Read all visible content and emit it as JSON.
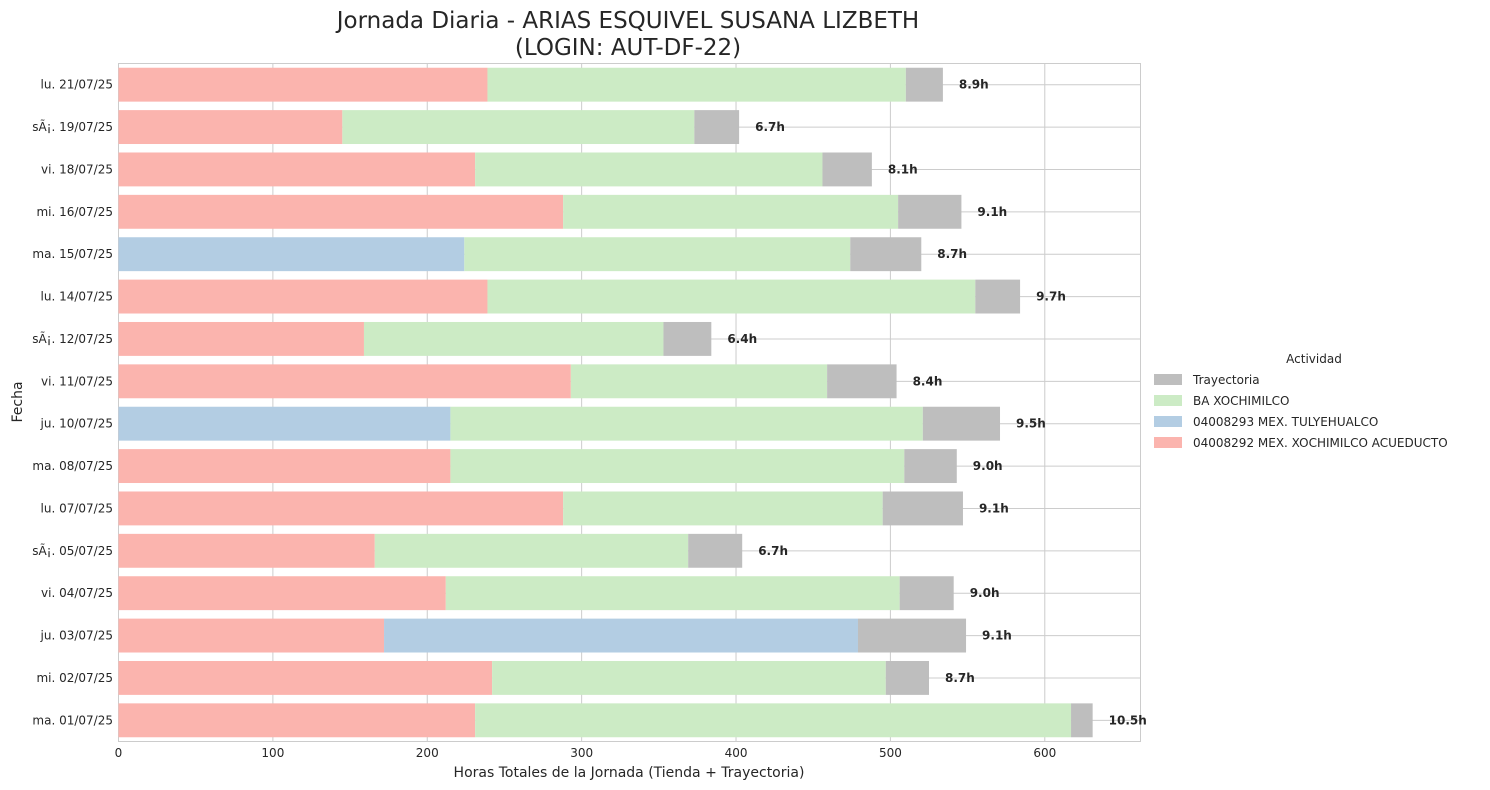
{
  "chart_data": {
    "type": "bar",
    "orientation": "horizontal",
    "stacked": true,
    "title_line1": "Jornada Diaria - ARIAS ESQUIVEL SUSANA LIZBETH",
    "title_line2": "(LOGIN: AUT-DF-22)",
    "xlabel": "Horas Totales de la Jornada (Tienda + Trayectoria)",
    "ylabel": "Fecha",
    "xlim": [
      0,
      662
    ],
    "xticks": [
      0,
      100,
      200,
      300,
      400,
      500,
      600
    ],
    "grid": true,
    "legend": {
      "title": "Actividad",
      "placement": "center-right",
      "entries": [
        "Trayectoria",
        "BA XOCHIMILCO",
        "04008293 MEX. TULYEHUALCO",
        "04008292 MEX. XOCHIMILCO ACUEDUCTO"
      ]
    },
    "series": [
      {
        "name": "04008292 MEX. XOCHIMILCO ACUEDUCTO",
        "color": "#fbb4ae",
        "values": [
          239,
          145,
          231,
          288,
          0,
          239,
          159,
          293,
          0,
          215,
          288,
          166,
          212,
          172,
          242,
          231
        ]
      },
      {
        "name": "04008293 MEX. TULYEHUALCO",
        "color": "#b3cde3",
        "values": [
          0,
          0,
          0,
          0,
          224,
          0,
          0,
          0,
          215,
          0,
          0,
          0,
          0,
          307,
          0,
          0
        ]
      },
      {
        "name": "BA XOCHIMILCO",
        "color": "#ccebc5",
        "values": [
          271,
          228,
          225,
          217,
          250,
          316,
          194,
          166,
          306,
          294,
          207,
          203,
          294,
          0,
          255,
          386
        ]
      },
      {
        "name": "Trayectoria",
        "color": "#bebebe",
        "values": [
          24,
          29,
          32,
          41,
          46,
          29,
          31,
          45,
          50,
          34,
          52,
          35,
          35,
          70,
          28,
          14
        ]
      }
    ],
    "categories": [
      "lu. 21/07/25",
      "sÃ¡. 19/07/25",
      "vi. 18/07/25",
      "mi. 16/07/25",
      "ma. 15/07/25",
      "lu. 14/07/25",
      "sÃ¡. 12/07/25",
      "vi. 11/07/25",
      "ju. 10/07/25",
      "ma. 08/07/25",
      "lu. 07/07/25",
      "sÃ¡. 05/07/25",
      "vi. 04/07/25",
      "ju. 03/07/25",
      "mi. 02/07/25",
      "ma. 01/07/25"
    ],
    "total_labels": [
      "8.9h",
      "6.7h",
      "8.1h",
      "9.1h",
      "8.7h",
      "9.7h",
      "6.4h",
      "8.4h",
      "9.5h",
      "9.0h",
      "9.1h",
      "6.7h",
      "9.0h",
      "9.1h",
      "8.7h",
      "10.5h"
    ]
  }
}
